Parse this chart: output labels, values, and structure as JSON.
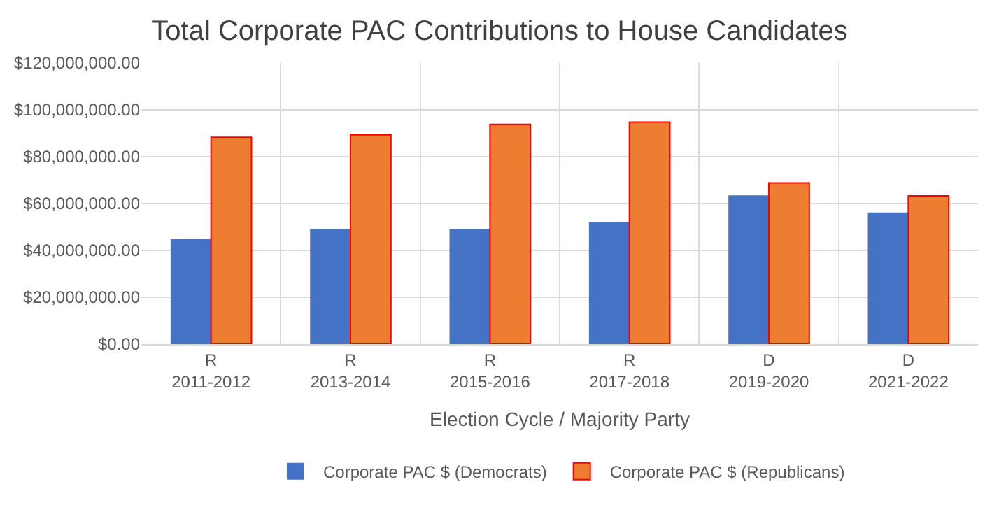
{
  "chart_data": {
    "type": "bar",
    "title": "Total Corporate PAC Contributions to House Candidates",
    "xlabel": "Election Cycle / Majority Party",
    "categories": [
      "R\n2011-2012",
      "R\n2013-2014",
      "R\n2015-2016",
      "R\n2017-2018",
      "D\n2019-2020",
      "D\n2021-2022"
    ],
    "series": [
      {
        "name": "Corporate PAC $ (Democrats)",
        "color": "#4472c4",
        "values": [
          45000000,
          49200000,
          49200000,
          52000000,
          63500000,
          56200000
        ]
      },
      {
        "name": "Corporate PAC $ (Republicans)",
        "color": "#ed7d31",
        "values": [
          88300000,
          89300000,
          93800000,
          94800000,
          68800000,
          63300000
        ]
      }
    ],
    "ylim": [
      0,
      120000000
    ],
    "yticks": [
      {
        "value": 0,
        "label": "$0.00"
      },
      {
        "value": 20000000,
        "label": "$20,000,000.00"
      },
      {
        "value": 40000000,
        "label": "$40,000,000.00"
      },
      {
        "value": 60000000,
        "label": "$60,000,000.00"
      },
      {
        "value": 80000000,
        "label": "$80,000,000.00"
      },
      {
        "value": 100000000,
        "label": "$100,000,000.00"
      },
      {
        "value": 120000000,
        "label": "$120,000,000.00"
      }
    ],
    "grid": true,
    "legend": "bottom"
  }
}
